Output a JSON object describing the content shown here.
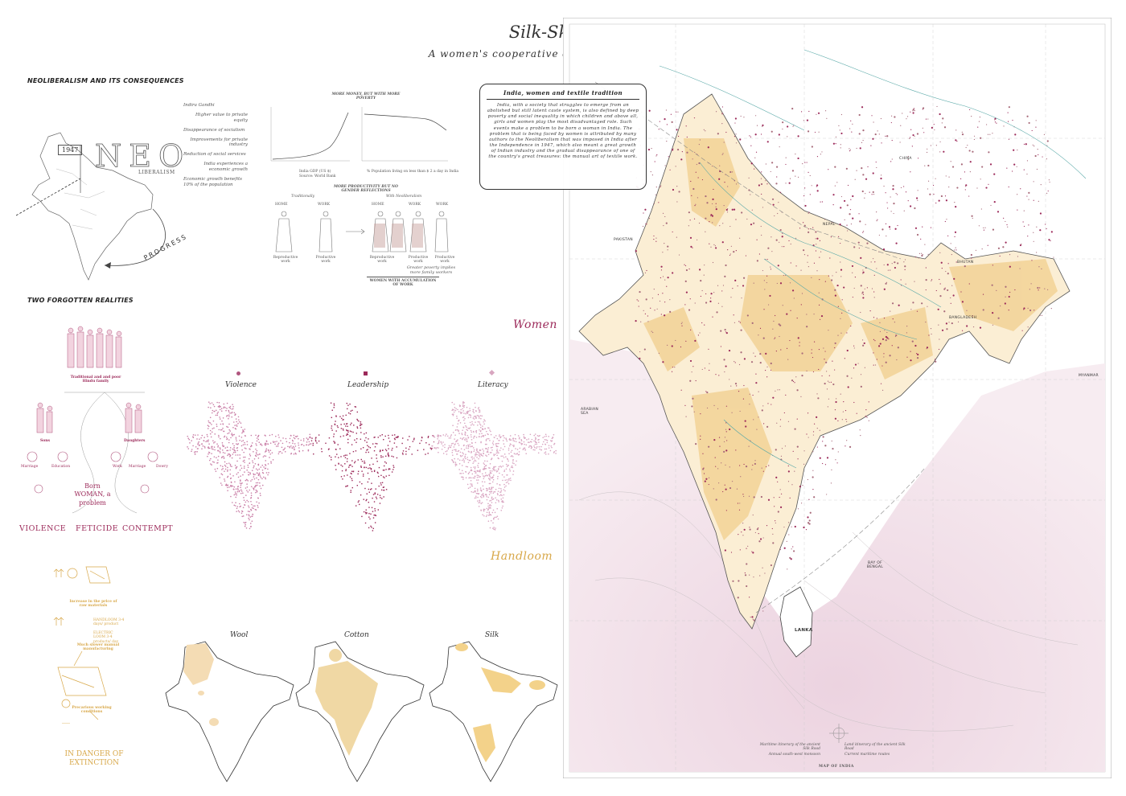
{
  "header": {
    "title": "Silk-Skin City",
    "subtitle": "A women's cooperative dedicated to Silk Crafts"
  },
  "neoliberalism": {
    "heading": "NEOLIBERALISM AND ITS CONSEQUENCES",
    "year": "1947",
    "neo": "NEO",
    "liberalism": "LIBERALISM",
    "progress": "PROGRESS",
    "timeline": [
      "Indira Gandhi",
      "Higher value to private equity",
      "Disappearance of socialism",
      "Improvements for private industry",
      "Reduction of social services",
      "India experiences a economic growth",
      "Economic growth benefits 10% of the population"
    ],
    "chart_title": "MORE MONEY, BUT WITH MORE POVERTY",
    "chart_caption_left": "India GDP (US $)",
    "chart_caption_right": "% Population living on less than $ 2 a day in India",
    "chart_source": "Source: World Bank",
    "productivity_title": "MORE PRODUCTIVITY BUT NO GENDER REFLECTIONS",
    "traditionally": "Traditionally",
    "with_neoliberalism": "With Neoliberalism",
    "home": "HOME",
    "work": "WORK",
    "reproductive_work": "Reproductive work",
    "productive_work": "Productive work",
    "poverty_note": "Greater poverty implies more family workers",
    "accumulation": "WOMEN WITH ACCUMULATION OF WORK"
  },
  "realities": {
    "heading": "TWO FORGOTTEN REALITIES",
    "family": "Traditional and and poor Hindu family",
    "sons": "Sons",
    "daughters": "Daughters",
    "marriage": "Marriage",
    "education": "Education",
    "work": "Work",
    "dowry": "Dowry",
    "born": "Born WOMAN, a problem",
    "words": [
      "VIOLENCE",
      "FETICIDE",
      "CONTEMPT"
    ]
  },
  "women": {
    "heading": "Women",
    "maps": [
      "Violence",
      "Leadership",
      "Literacy"
    ]
  },
  "handloom": {
    "heading": "Handloom",
    "notes": [
      "Increase in the price of raw materials",
      "HANDLOOM 3-4 days/ product",
      "ELECTRIC LOOM 3-4 products/ day",
      "Much slower manual manufacturing",
      "Precarious working conditions"
    ],
    "danger": "IN DANGER OF EXTINCTION",
    "maps": [
      "Wool",
      "Cotton",
      "Silk"
    ]
  },
  "infobox": {
    "title": "India, women and textile tradition",
    "body": "India, with a society that struggles to emerge from an abolished but still latent caste system, is also defined by deep poverty and social inequality in which children and above all, girls and women play the most disadvantaged role. Such events make a problem to be born a woman in India. The problem that is being faced by women is attributed by many authors to the Neoliberalism that was imposed in India after the Independence in 1947, which also meant a great growth of Indian industry and the gradual disappearance of one of the country's great treasures: the manual art of textile work."
  },
  "map": {
    "countries": [
      "CHINA",
      "NEPAL",
      "PAKISTAN",
      "BHUTAN",
      "BANGLADESH",
      "MYANMAR",
      "LANKA"
    ],
    "seas": [
      "ARABIAN SEA",
      "BAY OF BENGAL"
    ],
    "legend": [
      "Maritime itinerary of the ancient Silk Road",
      "Land itinerary of the ancient Silk Road",
      "Annual south-west monsoon",
      "Current maritime routes"
    ],
    "footer": "MAP OF INDIA"
  },
  "colors": {
    "magenta": "#9c2a5a",
    "pink": "#c97ea6",
    "gold": "#d8a84a",
    "sand": "#f2d49a",
    "sea": "#f1dfe8"
  }
}
